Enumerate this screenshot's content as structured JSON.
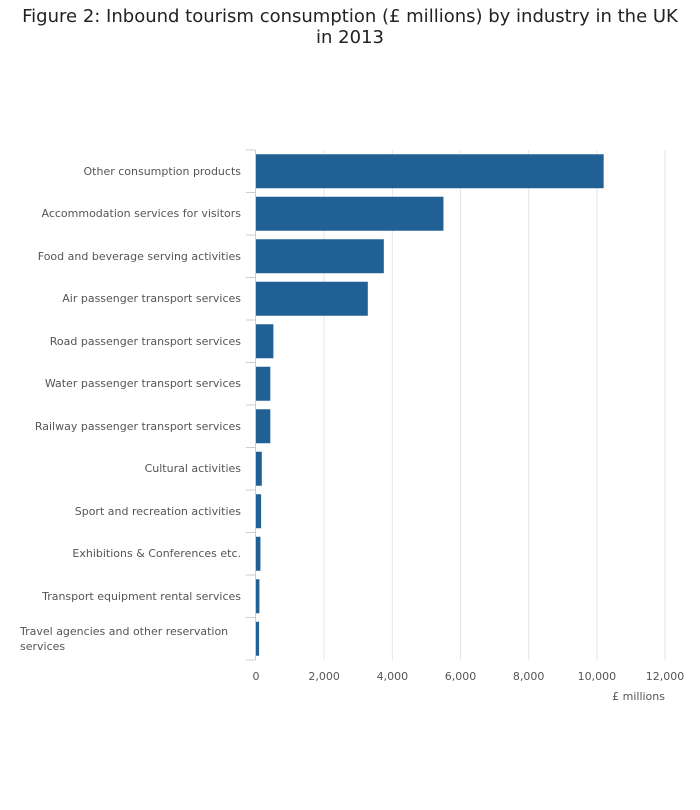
{
  "chart_data": {
    "type": "bar",
    "orientation": "horizontal",
    "title": "Figure 2: Inbound tourism consumption (£ millions) by industry in the UK in 2013",
    "xlabel": "£ millions",
    "ylabel": "",
    "xlim": [
      0,
      12000
    ],
    "x_ticks": [
      0,
      2000,
      4000,
      6000,
      8000,
      10000,
      12000
    ],
    "x_tick_labels": [
      "0",
      "2,000",
      "4,000",
      "6,000",
      "8,000",
      "10,000",
      "12,000"
    ],
    "grid": true,
    "legend": "none",
    "bar_color": "#206095",
    "categories": [
      "Other consumption products",
      "Accommodation services for visitors",
      "Food and beverage serving activities",
      "Air passenger transport services",
      "Road passenger transport services",
      "Water passenger transport services",
      "Railway passenger transport services",
      "Cultural activities",
      "Sport and recreation activities",
      "Exhibitions & Conferences etc.",
      "Transport equipment rental services",
      "Travel agencies and other reservation services"
    ],
    "values": [
      10200,
      5500,
      3750,
      3280,
      510,
      420,
      420,
      170,
      150,
      130,
      100,
      90
    ]
  }
}
